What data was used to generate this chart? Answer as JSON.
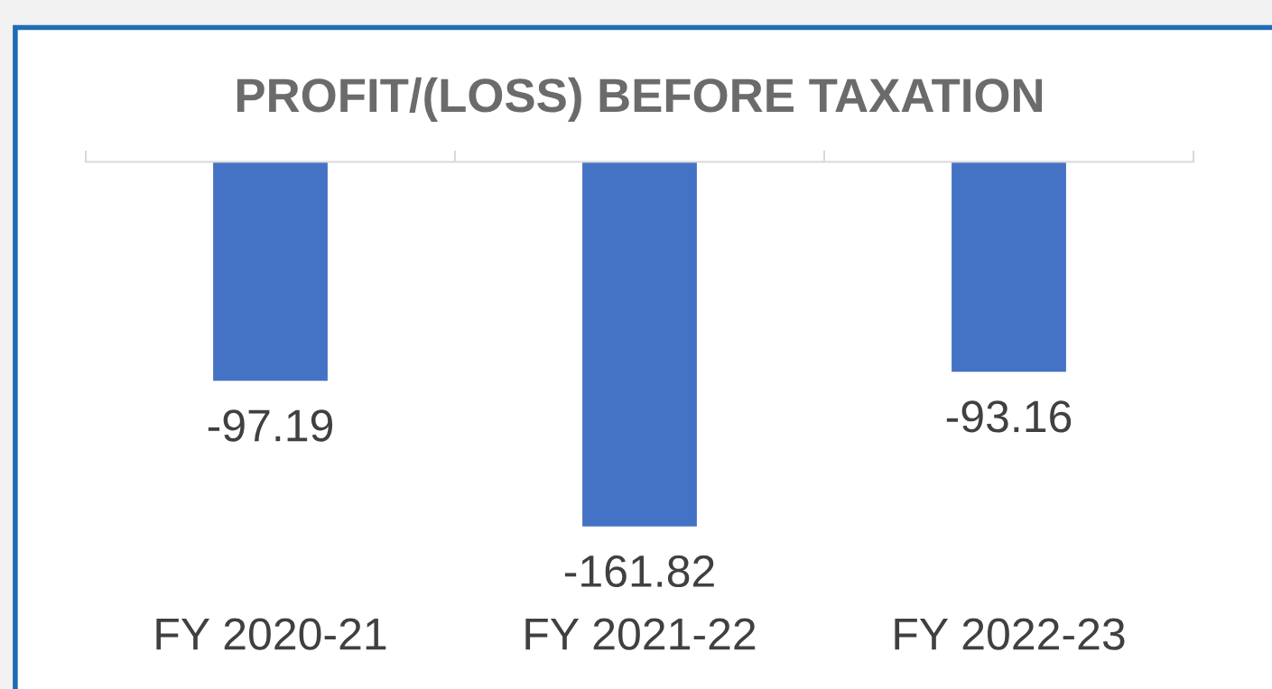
{
  "chart_data": {
    "type": "bar",
    "title": "PROFIT/(LOSS) BEFORE TAXATION",
    "categories": [
      "FY 2020-21",
      "FY 2021-22",
      "FY 2022-23"
    ],
    "values": [
      -97.19,
      -161.82,
      -93.16
    ],
    "color": "#4472c4",
    "data_labels": true,
    "grid": false,
    "legend": false
  }
}
